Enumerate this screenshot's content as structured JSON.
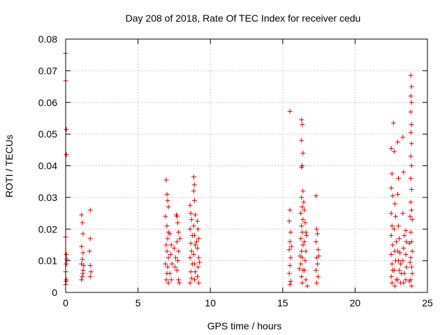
{
  "chart_data": {
    "type": "scatter",
    "title": "Day 208 of 2018, Rate Of TEC Index for receiver cedu",
    "xlabel": "GPS time / hours",
    "ylabel": "ROTI / TECUs",
    "xlim": [
      0,
      25
    ],
    "ylim": [
      0,
      0.08
    ],
    "grid": true,
    "marker": "+",
    "color": "#e00000",
    "xticks": [
      {
        "value": 0,
        "label": "0"
      },
      {
        "value": 5,
        "label": "5"
      },
      {
        "value": 10,
        "label": "10"
      },
      {
        "value": 15,
        "label": "15"
      },
      {
        "value": 20,
        "label": "20"
      },
      {
        "value": 25,
        "label": "25"
      }
    ],
    "yticks": [
      {
        "value": 0,
        "label": "0"
      },
      {
        "value": 0.01,
        "label": "0.01"
      },
      {
        "value": 0.02,
        "label": "0.02"
      },
      {
        "value": 0.03,
        "label": "0.03"
      },
      {
        "value": 0.04,
        "label": "0.04"
      },
      {
        "value": 0.05,
        "label": "0.05"
      },
      {
        "value": 0.06,
        "label": "0.06"
      },
      {
        "value": 0.07,
        "label": "0.07"
      },
      {
        "value": 0.08,
        "label": "0.08"
      }
    ],
    "series": [
      {
        "name": "ROTI",
        "points": [
          [
            0.0,
            0.0755
          ],
          [
            0.0,
            0.0668
          ],
          [
            0.05,
            0.0515
          ],
          [
            0.05,
            0.0435
          ],
          [
            0.0,
            0.0175
          ],
          [
            0.05,
            0.012
          ],
          [
            0.05,
            0.009
          ],
          [
            0.0,
            0.0065
          ],
          [
            0.05,
            0.004
          ],
          [
            0.0,
            0.0025
          ],
          [
            0.08,
            0.0105
          ],
          [
            0.03,
            0.0035
          ],
          [
            1.1,
            0.0245
          ],
          [
            1.15,
            0.022
          ],
          [
            1.2,
            0.0185
          ],
          [
            1.1,
            0.0145
          ],
          [
            1.2,
            0.0125
          ],
          [
            1.15,
            0.0105
          ],
          [
            1.1,
            0.009
          ],
          [
            1.2,
            0.007
          ],
          [
            1.15,
            0.005
          ],
          [
            1.1,
            0.004
          ],
          [
            1.25,
            0.0085
          ],
          [
            1.2,
            0.006
          ],
          [
            1.7,
            0.026
          ],
          [
            1.7,
            0.017
          ],
          [
            1.65,
            0.013
          ],
          [
            1.7,
            0.0085
          ],
          [
            1.75,
            0.0065
          ],
          [
            1.7,
            0.005
          ],
          [
            6.95,
            0.0355
          ],
          [
            7.0,
            0.031
          ],
          [
            7.05,
            0.029
          ],
          [
            7.1,
            0.027
          ],
          [
            6.9,
            0.024
          ],
          [
            7.0,
            0.021
          ],
          [
            7.1,
            0.019
          ],
          [
            7.05,
            0.017
          ],
          [
            6.95,
            0.015
          ],
          [
            7.0,
            0.013
          ],
          [
            7.1,
            0.011
          ],
          [
            6.9,
            0.009
          ],
          [
            7.05,
            0.008
          ],
          [
            7.0,
            0.006
          ],
          [
            6.95,
            0.004
          ],
          [
            7.1,
            0.003
          ],
          [
            7.2,
            0.0185
          ],
          [
            7.3,
            0.015
          ],
          [
            7.25,
            0.012
          ],
          [
            7.35,
            0.009
          ],
          [
            7.2,
            0.006
          ],
          [
            7.3,
            0.004
          ],
          [
            7.5,
            0.014
          ],
          [
            7.6,
            0.011
          ],
          [
            7.55,
            0.008
          ],
          [
            7.7,
            0.024
          ],
          [
            7.75,
            0.022
          ],
          [
            7.8,
            0.019
          ],
          [
            7.7,
            0.016
          ],
          [
            7.8,
            0.013
          ],
          [
            7.75,
            0.01
          ],
          [
            7.7,
            0.007
          ],
          [
            7.8,
            0.004
          ],
          [
            7.85,
            0.003
          ],
          [
            7.9,
            0.017
          ],
          [
            7.65,
            0.0245
          ],
          [
            8.6,
            0.0275
          ],
          [
            8.65,
            0.025
          ],
          [
            8.7,
            0.023
          ],
          [
            8.6,
            0.02
          ],
          [
            8.75,
            0.018
          ],
          [
            8.65,
            0.0155
          ],
          [
            8.7,
            0.013
          ],
          [
            8.6,
            0.011
          ],
          [
            8.75,
            0.009
          ],
          [
            8.65,
            0.0065
          ],
          [
            8.7,
            0.0045
          ],
          [
            8.6,
            0.003
          ],
          [
            8.85,
            0.0365
          ],
          [
            8.9,
            0.034
          ],
          [
            8.85,
            0.032
          ],
          [
            8.9,
            0.029
          ],
          [
            8.95,
            0.0245
          ],
          [
            8.85,
            0.021
          ],
          [
            8.9,
            0.018
          ],
          [
            8.95,
            0.015
          ],
          [
            8.85,
            0.012
          ],
          [
            8.9,
            0.009
          ],
          [
            8.95,
            0.0065
          ],
          [
            8.9,
            0.004
          ],
          [
            9.1,
            0.0225
          ],
          [
            9.15,
            0.02
          ],
          [
            9.2,
            0.017
          ],
          [
            9.1,
            0.014
          ],
          [
            9.2,
            0.011
          ],
          [
            9.15,
            0.008
          ],
          [
            9.1,
            0.005
          ],
          [
            9.2,
            0.003
          ],
          [
            9.05,
            0.016
          ],
          [
            9.25,
            0.0095
          ],
          [
            15.5,
            0.0572
          ],
          [
            15.5,
            0.026
          ],
          [
            15.45,
            0.0225
          ],
          [
            15.55,
            0.019
          ],
          [
            15.5,
            0.016
          ],
          [
            15.45,
            0.0135
          ],
          [
            15.55,
            0.011
          ],
          [
            15.5,
            0.0085
          ],
          [
            15.45,
            0.006
          ],
          [
            15.55,
            0.0035
          ],
          [
            15.6,
            0.0145
          ],
          [
            15.5,
            0.0025
          ],
          [
            16.3,
            0.0545
          ],
          [
            16.35,
            0.053
          ],
          [
            16.3,
            0.048
          ],
          [
            16.4,
            0.044
          ],
          [
            16.35,
            0.04
          ],
          [
            16.3,
            0.0395
          ],
          [
            16.4,
            0.032
          ],
          [
            16.3,
            0.03
          ],
          [
            16.35,
            0.027
          ],
          [
            16.25,
            0.025
          ],
          [
            16.4,
            0.023
          ],
          [
            16.3,
            0.021
          ],
          [
            16.35,
            0.019
          ],
          [
            16.25,
            0.017
          ],
          [
            16.4,
            0.015
          ],
          [
            16.3,
            0.013
          ],
          [
            16.35,
            0.011
          ],
          [
            16.25,
            0.009
          ],
          [
            16.4,
            0.007
          ],
          [
            16.3,
            0.005
          ],
          [
            16.35,
            0.003
          ],
          [
            16.5,
            0.026
          ],
          [
            16.55,
            0.022
          ],
          [
            16.6,
            0.019
          ],
          [
            16.5,
            0.016
          ],
          [
            16.6,
            0.013
          ],
          [
            16.55,
            0.01
          ],
          [
            16.5,
            0.007
          ],
          [
            16.6,
            0.004
          ],
          [
            16.7,
            0.002
          ],
          [
            16.65,
            0.018
          ],
          [
            16.2,
            0.0115
          ],
          [
            16.15,
            0.0075
          ],
          [
            16.45,
            0.0285
          ],
          [
            17.3,
            0.0305
          ],
          [
            17.35,
            0.02
          ],
          [
            17.4,
            0.0185
          ],
          [
            17.3,
            0.016
          ],
          [
            17.45,
            0.0135
          ],
          [
            17.35,
            0.011
          ],
          [
            17.4,
            0.009
          ],
          [
            17.3,
            0.007
          ],
          [
            17.45,
            0.005
          ],
          [
            17.35,
            0.003
          ],
          [
            17.5,
            0.0115
          ],
          [
            22.5,
            0.0455
          ],
          [
            22.55,
            0.0375
          ],
          [
            22.5,
            0.033
          ],
          [
            22.6,
            0.0305
          ],
          [
            22.5,
            0.025
          ],
          [
            22.55,
            0.021
          ],
          [
            22.5,
            0.018
          ],
          [
            22.6,
            0.015
          ],
          [
            22.5,
            0.012
          ],
          [
            22.55,
            0.009
          ],
          [
            22.6,
            0.007
          ],
          [
            22.5,
            0.005
          ],
          [
            22.55,
            0.003
          ],
          [
            22.65,
            0.0535
          ],
          [
            22.7,
            0.0445
          ],
          [
            22.75,
            0.028
          ],
          [
            22.8,
            0.024
          ],
          [
            22.7,
            0.02
          ],
          [
            22.85,
            0.016
          ],
          [
            22.75,
            0.013
          ],
          [
            22.8,
            0.01
          ],
          [
            22.7,
            0.007
          ],
          [
            22.85,
            0.004
          ],
          [
            22.75,
            0.002
          ],
          [
            22.95,
            0.0475
          ],
          [
            23.0,
            0.036
          ],
          [
            22.95,
            0.031
          ],
          [
            23.0,
            0.021
          ],
          [
            23.05,
            0.017
          ],
          [
            22.95,
            0.013
          ],
          [
            23.0,
            0.01
          ],
          [
            23.05,
            0.007
          ],
          [
            22.95,
            0.004
          ],
          [
            23.1,
            0.0125
          ],
          [
            23.15,
            0.009
          ],
          [
            23.2,
            0.006
          ],
          [
            23.15,
            0.003
          ],
          [
            23.3,
            0.049
          ],
          [
            23.35,
            0.038
          ],
          [
            23.3,
            0.025
          ],
          [
            23.4,
            0.018
          ],
          [
            23.35,
            0.014
          ],
          [
            23.3,
            0.01
          ],
          [
            23.4,
            0.006
          ],
          [
            23.35,
            0.003
          ],
          [
            23.5,
            0.0195
          ],
          [
            23.55,
            0.016
          ],
          [
            23.5,
            0.012
          ],
          [
            23.55,
            0.008
          ],
          [
            23.5,
            0.004
          ],
          [
            23.85,
            0.0685
          ],
          [
            23.9,
            0.065
          ],
          [
            23.85,
            0.062
          ],
          [
            23.9,
            0.06
          ],
          [
            23.85,
            0.057
          ],
          [
            23.9,
            0.053
          ],
          [
            23.85,
            0.0505
          ],
          [
            23.9,
            0.047
          ],
          [
            23.85,
            0.043
          ],
          [
            23.9,
            0.04
          ],
          [
            23.85,
            0.036
          ],
          [
            23.9,
            0.0325
          ],
          [
            23.85,
            0.0285
          ],
          [
            23.9,
            0.026
          ],
          [
            23.95,
            0.023
          ],
          [
            23.85,
            0.019
          ],
          [
            23.9,
            0.016
          ],
          [
            23.95,
            0.013
          ],
          [
            23.85,
            0.011
          ],
          [
            23.9,
            0.008
          ],
          [
            23.95,
            0.006
          ],
          [
            23.85,
            0.004
          ],
          [
            23.9,
            0.002
          ],
          [
            23.8,
            0.024
          ],
          [
            23.75,
            0.0155
          ],
          [
            23.8,
            0.0095
          ],
          [
            23.75,
            0.0035
          ]
        ]
      }
    ]
  }
}
